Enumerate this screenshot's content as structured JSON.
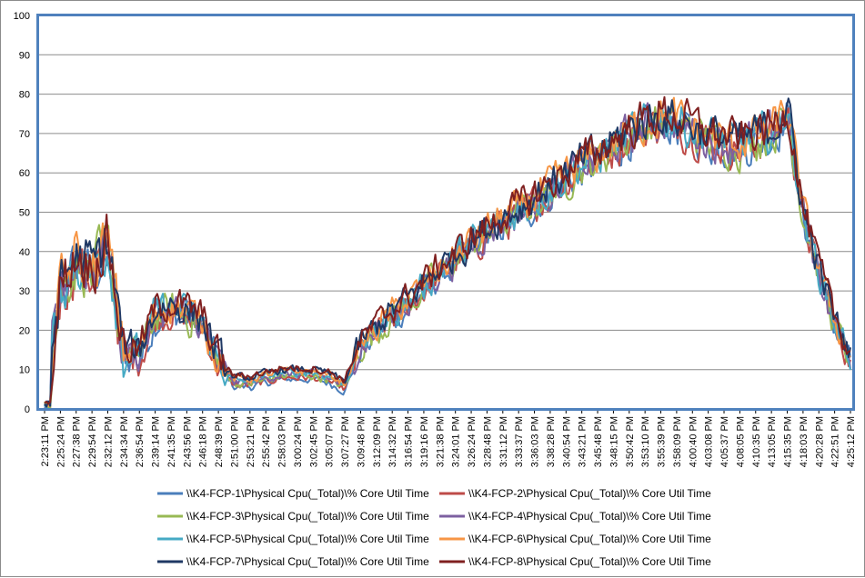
{
  "chart_data": {
    "type": "line",
    "title": "",
    "xlabel": "",
    "ylabel": "",
    "ylim": [
      0,
      100
    ],
    "yticks": [
      0,
      10,
      20,
      30,
      40,
      50,
      60,
      70,
      80,
      90,
      100
    ],
    "grid": true,
    "legend_position": "bottom",
    "x_tick_labels": [
      "2:23:11 PM",
      "2:25:24 PM",
      "2:27:38 PM",
      "2:29:54 PM",
      "2:32:12 PM",
      "2:34:34 PM",
      "2:36:54 PM",
      "2:39:14 PM",
      "2:41:35 PM",
      "2:43:56 PM",
      "2:46:18 PM",
      "2:48:39 PM",
      "2:51:00 PM",
      "2:53:21 PM",
      "2:55:42 PM",
      "2:58:03 PM",
      "3:00:24 PM",
      "3:02:45 PM",
      "3:05:07 PM",
      "3:07:27 PM",
      "3:09:48 PM",
      "3:12:09 PM",
      "3:14:32 PM",
      "3:16:54 PM",
      "3:19:16 PM",
      "3:21:38 PM",
      "3:24:01 PM",
      "3:26:24 PM",
      "3:28:48 PM",
      "3:31:12 PM",
      "3:33:37 PM",
      "3:36:03 PM",
      "3:38:28 PM",
      "3:40:54 PM",
      "3:43:21 PM",
      "3:45:48 PM",
      "3:48:15 PM",
      "3:50:42 PM",
      "3:53:10 PM",
      "3:55:39 PM",
      "3:58:09 PM",
      "4:00:40 PM",
      "4:03:08 PM",
      "4:05:37 PM",
      "4:08:05 PM",
      "4:10:35 PM",
      "4:13:05 PM",
      "4:15:35 PM",
      "4:18:03 PM",
      "4:20:28 PM",
      "4:22:51 PM",
      "4:25:12 PM"
    ],
    "envelope": {
      "x_index": [
        0,
        1,
        2,
        3,
        4,
        5,
        6,
        7,
        8,
        9,
        10,
        11,
        12,
        13,
        14,
        15,
        16,
        17,
        18,
        19,
        20,
        21,
        22,
        23,
        24,
        25,
        26,
        27,
        28,
        29,
        30,
        31,
        32,
        33,
        34,
        35,
        36,
        37,
        38,
        39,
        40,
        41,
        42,
        43,
        44,
        45,
        46,
        47,
        48,
        49,
        50,
        51
      ],
      "values": [
        0,
        30,
        38,
        35,
        42,
        14,
        14,
        24,
        26,
        24,
        22,
        12,
        7,
        7,
        8,
        9,
        9,
        9,
        8,
        6,
        16,
        20,
        24,
        27,
        31,
        35,
        38,
        42,
        45,
        48,
        50,
        53,
        56,
        59,
        62,
        64,
        67,
        70,
        72,
        74,
        73,
        71,
        69,
        68,
        67,
        69,
        70,
        76,
        50,
        35,
        22,
        13
      ]
    },
    "series": [
      {
        "name": "\\\\K4-FCP-1\\Physical Cpu(_Total)\\% Core Util Time",
        "color": "#4a7ebb"
      },
      {
        "name": "\\\\K4-FCP-2\\Physical Cpu(_Total)\\% Core Util Time",
        "color": "#be4b48"
      },
      {
        "name": "\\\\K4-FCP-3\\Physical Cpu(_Total)\\% Core Util Time",
        "color": "#98b954"
      },
      {
        "name": "\\\\K4-FCP-4\\Physical Cpu(_Total)\\% Core Util Time",
        "color": "#7d60a0"
      },
      {
        "name": "\\\\K4-FCP-5\\Physical Cpu(_Total)\\% Core Util Time",
        "color": "#46aac4"
      },
      {
        "name": "\\\\K4-FCP-6\\Physical Cpu(_Total)\\% Core Util Time",
        "color": "#f79646"
      },
      {
        "name": "\\\\K4-FCP-7\\Physical Cpu(_Total)\\% Core Util Time",
        "color": "#1f3864"
      },
      {
        "name": "\\\\K4-FCP-8\\Physical Cpu(_Total)\\% Core Util Time",
        "color": "#7f2020"
      }
    ]
  }
}
